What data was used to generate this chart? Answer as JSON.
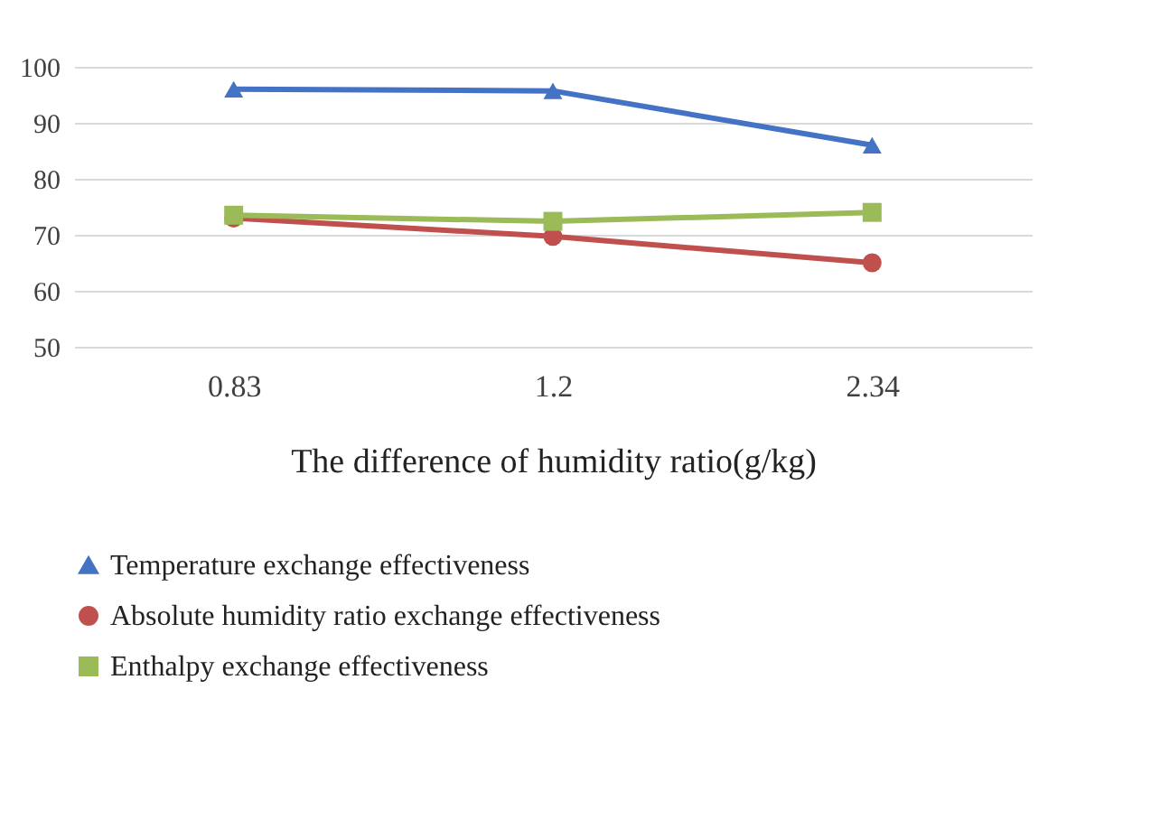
{
  "chart_data": {
    "type": "line",
    "xlabel": "The difference of humidity ratio(g/kg)",
    "categories": [
      "0.83",
      "1.2",
      "2.34"
    ],
    "ylim": [
      50,
      100
    ],
    "yticks": [
      50,
      60,
      70,
      80,
      90,
      100
    ],
    "grid": "y",
    "legend": "bottom",
    "series": [
      {
        "name": "Temperature exchange effectiveness",
        "color": "#4472c4",
        "marker": "triangle",
        "values": [
          96,
          95.7,
          86
        ]
      },
      {
        "name": "Absolute humidity ratio exchange effectiveness",
        "color": "#c0504d",
        "marker": "circle",
        "values": [
          73,
          69.7,
          65
        ]
      },
      {
        "name": "Enthalpy exchange effectiveness",
        "color": "#9bbb59",
        "marker": "square",
        "values": [
          73.5,
          72.4,
          74
        ]
      }
    ]
  }
}
